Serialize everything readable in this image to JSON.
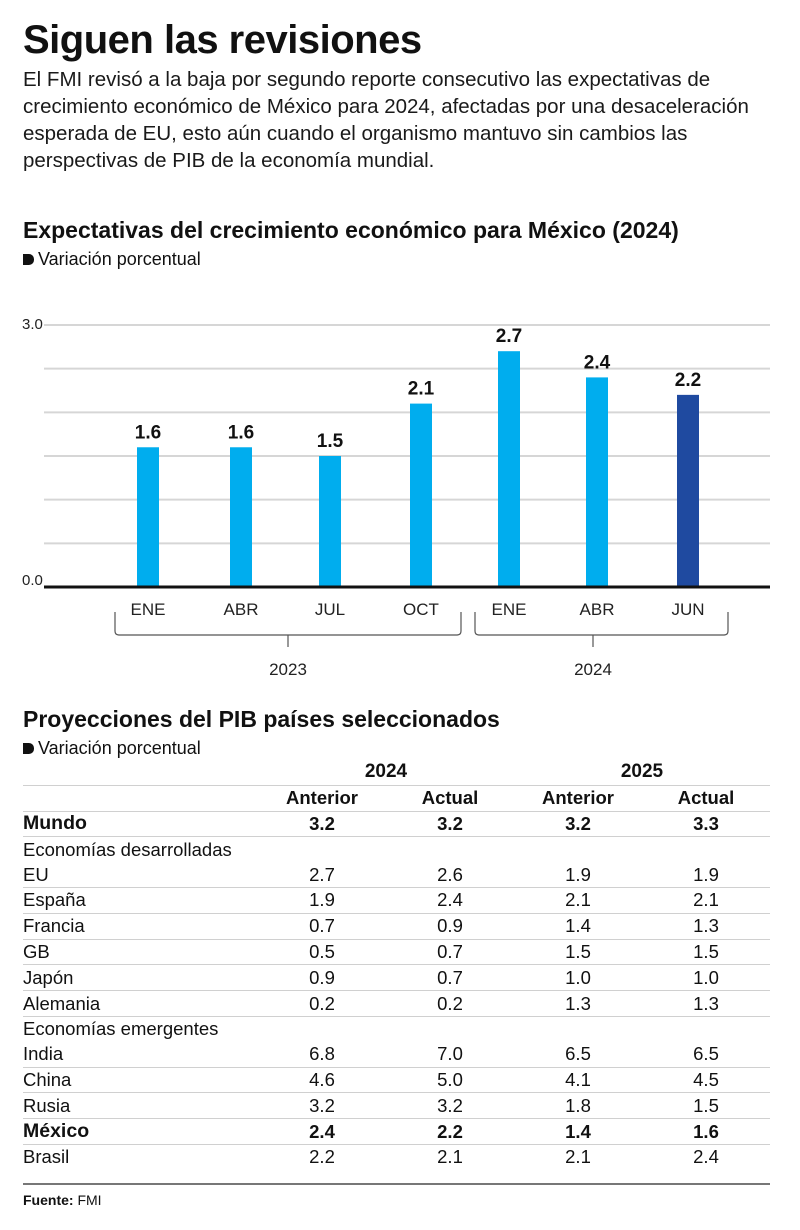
{
  "header": {
    "title": "Siguen las revisiones",
    "intro": "El FMI revisó a la baja por segundo reporte consecutivo las expectativas de crecimiento económico de México para 2024, afectadas por una desaceleración esperada de EU, esto aún cuando el organismo mantuvo sin cambios las perspectivas de PIB de la economía mundial."
  },
  "chart_data": {
    "type": "bar",
    "title": "Expectativas del crecimiento económico para México (2024)",
    "subtitle": "Variación porcentual",
    "categories": [
      "ENE",
      "ABR",
      "JUL",
      "OCT",
      "ENE",
      "ABR",
      "JUN"
    ],
    "groups": [
      {
        "label": "2023",
        "categories": [
          "ENE",
          "ABR",
          "JUL",
          "OCT"
        ]
      },
      {
        "label": "2024",
        "categories": [
          "ENE",
          "ABR",
          "JUN"
        ]
      }
    ],
    "values": [
      1.6,
      1.6,
      1.5,
      2.1,
      2.7,
      2.4,
      2.2
    ],
    "data_labels": [
      "1.6",
      "1.6",
      "1.5",
      "2.1",
      "2.7",
      "2.4",
      "2.2"
    ],
    "highlight_index": 6,
    "ylim": [
      0,
      3.0
    ],
    "y_ticks": [
      "0.0",
      "3.0"
    ],
    "grid_step": 0.5,
    "grid": true,
    "xlabel": "",
    "ylabel": "",
    "colors": {
      "bar": "#00adee",
      "highlight": "#1f4aa0",
      "grid": "#d6d6d6",
      "axis": "#111111"
    }
  },
  "table": {
    "title": "Proyecciones del PIB países seleccionados",
    "subtitle": "Variación porcentual",
    "years": [
      "2024",
      "2025"
    ],
    "columns": [
      "Anterior",
      "Actual",
      "Anterior",
      "Actual"
    ],
    "rows": [
      {
        "name": "Mundo",
        "values": [
          "3.2",
          "3.2",
          "3.2",
          "3.3"
        ],
        "style": "bold"
      },
      {
        "name": "Economías desarrolladas",
        "values": [],
        "style": "group"
      },
      {
        "name": "EU",
        "values": [
          "2.7",
          "2.6",
          "1.9",
          "1.9"
        ],
        "style": "normal"
      },
      {
        "name": "España",
        "values": [
          "1.9",
          "2.4",
          "2.1",
          "2.1"
        ],
        "style": "normal"
      },
      {
        "name": "Francia",
        "values": [
          "0.7",
          "0.9",
          "1.4",
          "1.3"
        ],
        "style": "normal"
      },
      {
        "name": "GB",
        "values": [
          "0.5",
          "0.7",
          "1.5",
          "1.5"
        ],
        "style": "normal"
      },
      {
        "name": "Japón",
        "values": [
          "0.9",
          "0.7",
          "1.0",
          "1.0"
        ],
        "style": "normal"
      },
      {
        "name": "Alemania",
        "values": [
          "0.2",
          "0.2",
          "1.3",
          "1.3"
        ],
        "style": "normal"
      },
      {
        "name": "Economías emergentes",
        "values": [],
        "style": "group"
      },
      {
        "name": "India",
        "values": [
          "6.8",
          "7.0",
          "6.5",
          "6.5"
        ],
        "style": "normal"
      },
      {
        "name": "China",
        "values": [
          "4.6",
          "5.0",
          "4.1",
          "4.5"
        ],
        "style": "normal"
      },
      {
        "name": "Rusia",
        "values": [
          "3.2",
          "3.2",
          "1.8",
          "1.5"
        ],
        "style": "normal"
      },
      {
        "name": "México",
        "values": [
          "2.4",
          "2.2",
          "1.4",
          "1.6"
        ],
        "style": "bold"
      },
      {
        "name": "Brasil",
        "values": [
          "2.2",
          "2.1",
          "2.1",
          "2.4"
        ],
        "style": "normal"
      }
    ]
  },
  "footer": {
    "source_label": "Fuente:",
    "source_value": "FMI"
  }
}
